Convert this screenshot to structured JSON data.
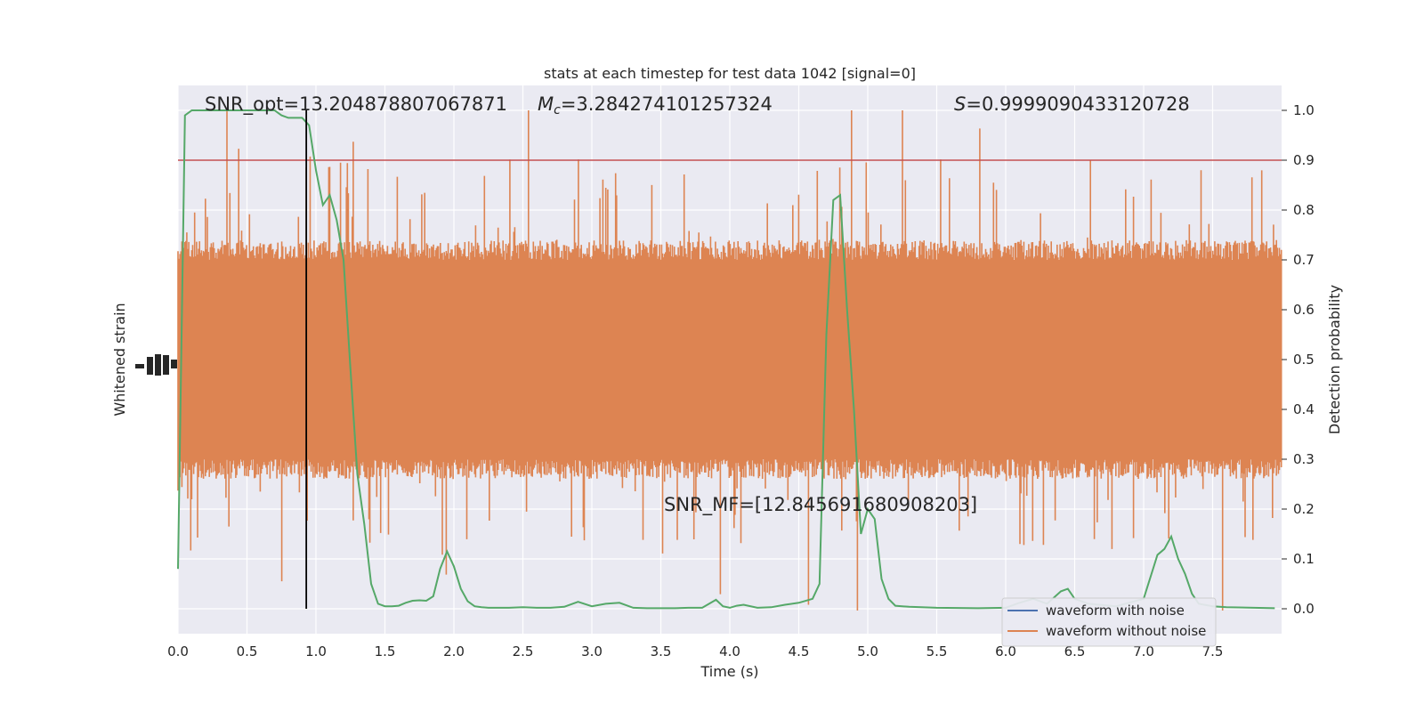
{
  "chart_data": {
    "type": "line",
    "title": "stats at each timestep for test data 1042 [signal=0]",
    "xlabel": "Time (s)",
    "ylabel_left": "Whitened strain",
    "ylabel_right": "Detection probability",
    "xlim": [
      0,
      8
    ],
    "ylim_right": [
      -0.05,
      1.05
    ],
    "x_ticks": [
      "0.0",
      "0.5",
      "1.0",
      "1.5",
      "2.0",
      "2.5",
      "3.0",
      "3.5",
      "4.0",
      "4.5",
      "5.0",
      "5.5",
      "6.0",
      "6.5",
      "7.0",
      "7.5"
    ],
    "y_ticks_right": [
      "0.0",
      "0.1",
      "0.2",
      "0.3",
      "0.4",
      "0.5",
      "0.6",
      "0.7",
      "0.8",
      "0.9",
      "1.0"
    ],
    "grid": true,
    "threshold": 0.9,
    "vertical_marker_x": 0.93,
    "annotations": {
      "snr_opt": "SNR_opt=13.204878807067871",
      "mc_symbol": "M",
      "mc_sub": "c",
      "mc_value": "=3.284274101257324",
      "s_symbol": "S",
      "s_value": "=0.9999090433120728",
      "snr_mf": "SNR_MF=[12.845691680908203]"
    },
    "legend": {
      "position": "lower-right",
      "entries": [
        {
          "label": "waveform with noise",
          "color": "#4c72b0"
        },
        {
          "label": "waveform without noise",
          "color": "#dd8452"
        }
      ]
    },
    "colors": {
      "noise_waveform": "#dd8452",
      "probability_line": "#55a868",
      "threshold_line": "#c44e52",
      "marker_line": "#000000",
      "background": "#eaeaf2",
      "grid": "#ffffff"
    },
    "probability_series": {
      "x": [
        0.0,
        0.05,
        0.1,
        0.15,
        0.2,
        0.25,
        0.3,
        0.35,
        0.4,
        0.45,
        0.5,
        0.55,
        0.6,
        0.65,
        0.7,
        0.75,
        0.8,
        0.85,
        0.9,
        0.95,
        1.0,
        1.05,
        1.1,
        1.15,
        1.2,
        1.25,
        1.3,
        1.35,
        1.4,
        1.45,
        1.5,
        1.55,
        1.6,
        1.65,
        1.7,
        1.75,
        1.8,
        1.85,
        1.9,
        1.95,
        2.0,
        2.05,
        2.1,
        2.15,
        2.2,
        2.25,
        2.3,
        2.4,
        2.5,
        2.6,
        2.7,
        2.8,
        2.9,
        3.0,
        3.1,
        3.2,
        3.3,
        3.4,
        3.5,
        3.6,
        3.7,
        3.8,
        3.9,
        3.95,
        4.0,
        4.05,
        4.1,
        4.2,
        4.3,
        4.4,
        4.5,
        4.6,
        4.65,
        4.7,
        4.75,
        4.8,
        4.85,
        4.9,
        4.95,
        5.0,
        5.05,
        5.1,
        5.15,
        5.2,
        5.3,
        5.5,
        5.8,
        6.0,
        6.1,
        6.2,
        6.3,
        6.4,
        6.45,
        6.5,
        6.6,
        6.8,
        7.0,
        7.1,
        7.15,
        7.2,
        7.25,
        7.3,
        7.35,
        7.4,
        7.5,
        7.6,
        7.8,
        7.95
      ],
      "y": [
        0.08,
        0.99,
        1.0,
        1.0,
        1.0,
        1.0,
        1.0,
        1.0,
        1.0,
        1.0,
        1.0,
        1.0,
        1.0,
        1.0,
        1.0,
        0.99,
        0.985,
        0.985,
        0.985,
        0.97,
        0.88,
        0.81,
        0.83,
        0.78,
        0.7,
        0.48,
        0.27,
        0.17,
        0.05,
        0.01,
        0.005,
        0.005,
        0.006,
        0.012,
        0.016,
        0.017,
        0.016,
        0.025,
        0.08,
        0.115,
        0.085,
        0.04,
        0.015,
        0.005,
        0.003,
        0.002,
        0.002,
        0.002,
        0.003,
        0.002,
        0.002,
        0.004,
        0.014,
        0.005,
        0.01,
        0.012,
        0.002,
        0.001,
        0.001,
        0.001,
        0.002,
        0.002,
        0.018,
        0.005,
        0.002,
        0.006,
        0.008,
        0.002,
        0.003,
        0.008,
        0.012,
        0.02,
        0.05,
        0.55,
        0.82,
        0.83,
        0.6,
        0.4,
        0.15,
        0.2,
        0.18,
        0.06,
        0.02,
        0.006,
        0.004,
        0.002,
        0.001,
        0.002,
        0.012,
        0.02,
        0.01,
        0.035,
        0.04,
        0.02,
        0.01,
        0.005,
        0.02,
        0.108,
        0.12,
        0.145,
        0.1,
        0.07,
        0.03,
        0.01,
        0.005,
        0.003,
        0.002,
        0.001
      ]
    }
  }
}
